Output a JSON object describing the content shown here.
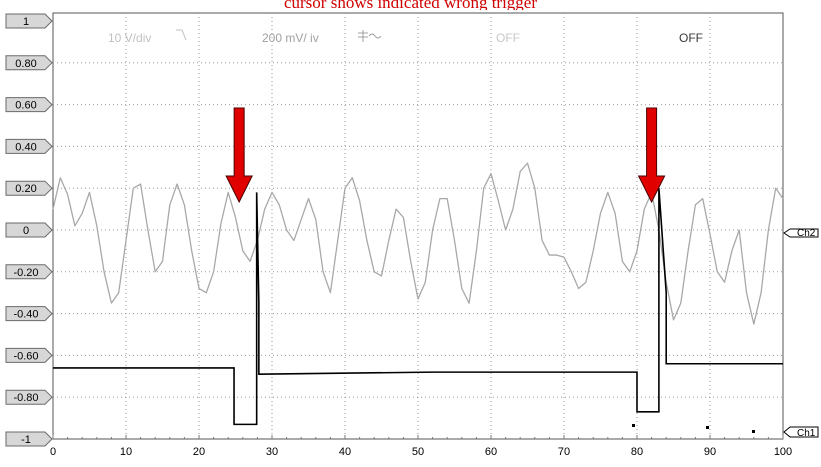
{
  "caption": "cursor shows indicated wrong trigger",
  "header": {
    "timebase": "10 V/div",
    "ch1_scale": "200 mV/ iv",
    "ch1_state": "OFF",
    "ch2_state": "OFF"
  },
  "channel_markers": {
    "ch2": "Ch2",
    "ch1": "Ch1"
  },
  "colors": {
    "arrow": "#e00000",
    "trace_sine": "#a8a8a8",
    "trace_square": "#000000",
    "grid": "#9a9a9a",
    "label_box": "#d7d7d7"
  },
  "chart_data": {
    "type": "line",
    "xlim": [
      0,
      100
    ],
    "ylim": [
      -1,
      1
    ],
    "x_ticks": [
      "0",
      "10",
      "20",
      "30",
      "40",
      "50",
      "60",
      "70",
      "80",
      "90",
      "100"
    ],
    "y_ticks": [
      "1",
      "0.80",
      "0.60",
      "0.40",
      "0.20",
      "0",
      "-0.20",
      "-0.40",
      "-0.60",
      "-0.80",
      "-1"
    ],
    "grid": true,
    "series": [
      {
        "color": "#a8a8a8",
        "x": [
          0,
          1,
          2,
          3,
          4,
          5,
          6,
          7,
          8,
          9,
          10,
          11,
          12,
          13,
          14,
          15,
          16,
          17,
          18,
          19,
          20,
          21,
          22,
          23,
          24,
          25,
          26,
          27,
          28,
          29,
          30,
          31,
          32,
          33,
          34,
          35,
          36,
          37,
          38,
          39,
          40,
          41,
          42,
          43,
          44,
          45,
          46,
          47,
          48,
          49,
          50,
          51,
          52,
          53,
          54,
          55,
          56,
          57,
          58,
          59,
          60,
          61,
          62,
          63,
          64,
          65,
          66,
          67,
          68,
          69,
          70,
          71,
          72,
          73,
          74,
          75,
          76,
          77,
          78,
          79,
          80,
          81,
          82,
          83,
          84,
          85,
          86,
          87,
          88,
          89,
          90,
          91,
          92,
          93,
          94,
          95,
          96,
          97,
          98,
          99,
          100
        ],
        "y": [
          0.1,
          0.25,
          0.17,
          0.02,
          0.08,
          0.18,
          0.02,
          -0.2,
          -0.35,
          -0.3,
          -0.05,
          0.2,
          0.22,
          0.0,
          -0.2,
          -0.15,
          0.12,
          0.22,
          0.12,
          -0.1,
          -0.28,
          -0.3,
          -0.2,
          0.03,
          0.18,
          0.06,
          -0.1,
          -0.15,
          -0.05,
          0.1,
          0.18,
          0.12,
          0.0,
          -0.05,
          0.05,
          0.15,
          0.05,
          -0.2,
          -0.3,
          -0.05,
          0.2,
          0.25,
          0.14,
          -0.05,
          -0.2,
          -0.22,
          -0.05,
          0.1,
          0.06,
          -0.15,
          -0.33,
          -0.25,
          0.0,
          0.15,
          0.15,
          -0.05,
          -0.28,
          -0.35,
          -0.1,
          0.2,
          0.27,
          0.14,
          0.0,
          0.1,
          0.28,
          0.32,
          0.2,
          -0.05,
          -0.12,
          -0.12,
          -0.13,
          -0.2,
          -0.28,
          -0.25,
          -0.1,
          0.08,
          0.18,
          0.08,
          -0.15,
          -0.2,
          -0.1,
          0.1,
          0.18,
          0.0,
          -0.25,
          -0.43,
          -0.35,
          -0.1,
          0.12,
          0.15,
          -0.02,
          -0.2,
          -0.25,
          -0.1,
          0.0,
          -0.3,
          -0.45,
          -0.3,
          0.0,
          0.2,
          0.15
        ]
      },
      {
        "color": "#000000",
        "x": [
          0,
          24.8,
          24.8,
          27.9,
          27.9,
          28.2,
          28.2,
          52,
          80,
          80,
          83,
          83,
          84,
          84,
          100
        ],
        "y": [
          -0.66,
          -0.66,
          -0.93,
          -0.93,
          0.18,
          -0.35,
          -0.69,
          -0.68,
          -0.68,
          -0.87,
          -0.87,
          0.2,
          -0.3,
          -0.64,
          -0.64
        ]
      }
    ],
    "annotations": [
      {
        "type": "arrow",
        "x": 25.5,
        "color": "#e00000"
      },
      {
        "type": "arrow",
        "x": 82,
        "color": "#e00000"
      }
    ]
  }
}
